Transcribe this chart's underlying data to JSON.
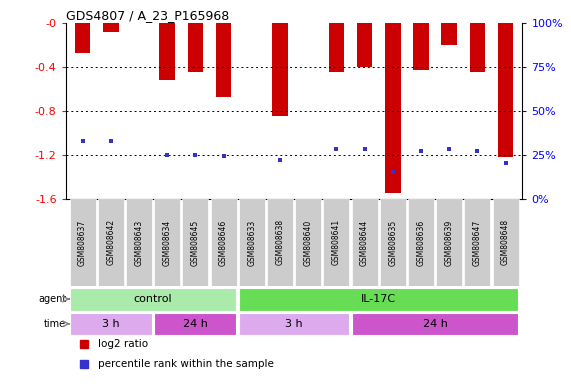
{
  "title": "GDS4807 / A_23_P165968",
  "samples": [
    "GSM808637",
    "GSM808642",
    "GSM808643",
    "GSM808634",
    "GSM808645",
    "GSM808646",
    "GSM808633",
    "GSM808638",
    "GSM808640",
    "GSM808641",
    "GSM808644",
    "GSM808635",
    "GSM808636",
    "GSM808639",
    "GSM808647",
    "GSM808648"
  ],
  "log2_ratio": [
    -0.27,
    -0.08,
    0.0,
    -0.52,
    -0.45,
    -0.67,
    0.0,
    -0.85,
    0.0,
    -0.45,
    -0.4,
    -1.55,
    -0.43,
    -0.2,
    -0.45,
    -1.22
  ],
  "percentile_rank": [
    33,
    33,
    -1,
    25,
    25,
    24,
    -1,
    22,
    -1,
    28,
    28,
    15,
    27,
    28,
    27,
    20
  ],
  "bar_color": "#cc0000",
  "dot_color": "#3333cc",
  "ylim": [
    -1.6,
    0.0
  ],
  "yticks_left": [
    -0.0,
    -0.4,
    -0.8,
    -1.2,
    -1.6
  ],
  "ytick_labels_left": [
    "-0",
    "-0.4",
    "-0.8",
    "-1.2",
    "-1.6"
  ],
  "right_yticks_pct": [
    100,
    75,
    50,
    25,
    0
  ],
  "agent_groups": [
    {
      "label": "control",
      "start": 0,
      "end": 5,
      "color": "#aaeaaa"
    },
    {
      "label": "IL-17C",
      "start": 6,
      "end": 15,
      "color": "#66dd55"
    }
  ],
  "time_groups": [
    {
      "label": "3 h",
      "start": 0,
      "end": 2,
      "color": "#ddaaee"
    },
    {
      "label": "24 h",
      "start": 3,
      "end": 5,
      "color": "#cc55cc"
    },
    {
      "label": "3 h",
      "start": 6,
      "end": 9,
      "color": "#ddaaee"
    },
    {
      "label": "24 h",
      "start": 10,
      "end": 15,
      "color": "#cc55cc"
    }
  ],
  "legend_items": [
    {
      "color": "#cc0000",
      "label": "log2 ratio"
    },
    {
      "color": "#3333cc",
      "label": "percentile rank within the sample"
    }
  ],
  "background_color": "#ffffff",
  "tick_label_bg": "#cccccc",
  "bar_width": 0.55
}
